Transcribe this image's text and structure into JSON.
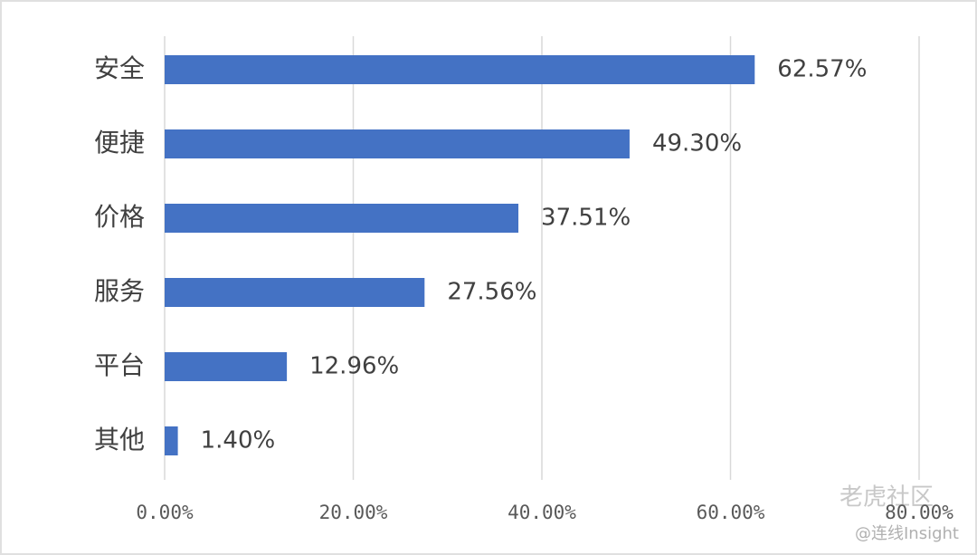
{
  "chart_data": {
    "type": "bar",
    "orientation": "horizontal",
    "categories": [
      "安全",
      "便捷",
      "价格",
      "服务",
      "平台",
      "其他"
    ],
    "values": [
      62.57,
      49.3,
      37.51,
      27.56,
      12.96,
      1.4
    ],
    "value_labels": [
      "62.57%",
      "49.30%",
      "37.51%",
      "27.56%",
      "12.96%",
      "1.40%"
    ],
    "color": "#4472c4",
    "xlim": [
      0,
      80
    ],
    "xticks": [
      {
        "value": 0,
        "label": "0.00%"
      },
      {
        "value": 20,
        "label": "20.00%"
      },
      {
        "value": 40,
        "label": "40.00%"
      },
      {
        "value": 60,
        "label": "60.00%"
      },
      {
        "value": 80,
        "label": "80.00%"
      }
    ],
    "grid": true
  },
  "watermark": {
    "site": "老虎社区",
    "author": "@连线Insight"
  }
}
